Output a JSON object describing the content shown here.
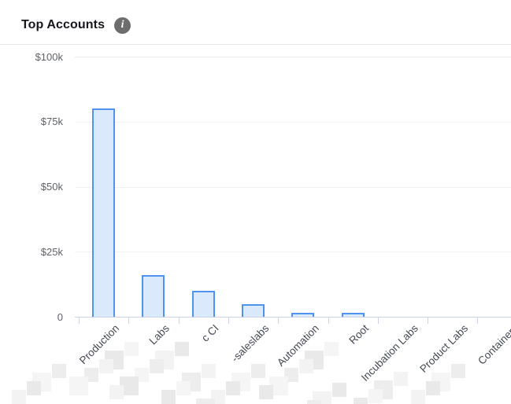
{
  "header": {
    "title": "Top Accounts",
    "info_icon": "i"
  },
  "chart_data": {
    "type": "bar",
    "title": "Top Accounts",
    "categories": [
      "Production",
      "Labs",
      "c CI",
      "-saleslabs",
      "Automation",
      "Root",
      "Incubation Labs",
      "Product Labs",
      "Containers"
    ],
    "values": [
      80000,
      16000,
      10000,
      4800,
      1500,
      1500,
      0,
      0,
      0
    ],
    "redacted_prefixes": [
      true,
      true,
      true,
      true,
      true,
      true,
      true,
      true,
      true
    ],
    "xlabel": "",
    "ylabel": "",
    "ylim": [
      0,
      100000
    ],
    "y_ticks": [
      {
        "label": "$100k",
        "value": 100000
      },
      {
        "label": "$75k",
        "value": 75000
      },
      {
        "label": "$50k",
        "value": 50000
      },
      {
        "label": "$25k",
        "value": 25000
      },
      {
        "label": "0",
        "value": 0
      }
    ],
    "grid": true,
    "legend": "none",
    "colors": {
      "bar_fill": "#dbe9fc",
      "bar_border": "#4e94ee",
      "axis": "#ccd3e6",
      "gridline": "#f2f2f2",
      "y_label_text": "#5f6368",
      "x_label_text": "#454a54",
      "title_text": "#16181d",
      "info_badge_bg": "#6d6d6d"
    }
  }
}
